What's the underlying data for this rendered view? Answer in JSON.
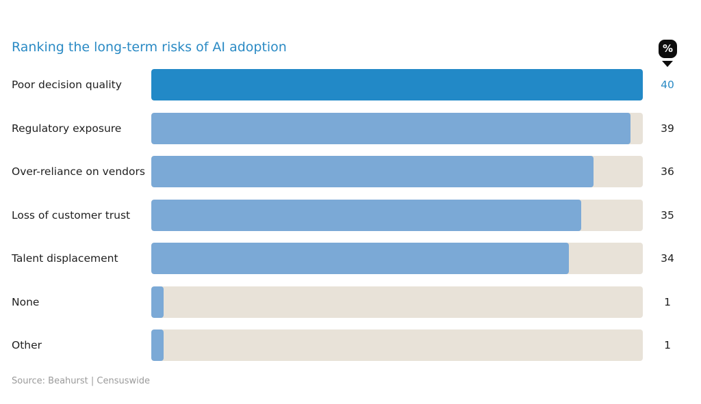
{
  "chart_data": {
    "type": "bar",
    "orientation": "horizontal",
    "title": "Ranking the long-term risks of AI adoption",
    "unit": "%",
    "categories": [
      "Poor decision quality",
      "Regulatory exposure",
      "Over-reliance on vendors",
      "Loss of customer trust",
      "Talent displacement",
      "None",
      "Other"
    ],
    "values": [
      40,
      39,
      36,
      35,
      34,
      1,
      1
    ],
    "value_labels": [
      "40",
      "39",
      "36",
      "35",
      "34",
      "1",
      "1"
    ],
    "xlim": [
      0,
      40
    ],
    "highlight_index": 0,
    "grid": false,
    "colors": {
      "highlight": "#2289c7",
      "bar": "#7ba9d6",
      "track": "#e8e2d8",
      "title": "#2a8ac4",
      "badge": "#0d0d0d"
    },
    "source": "Source: Beahurst | Censuswide"
  }
}
